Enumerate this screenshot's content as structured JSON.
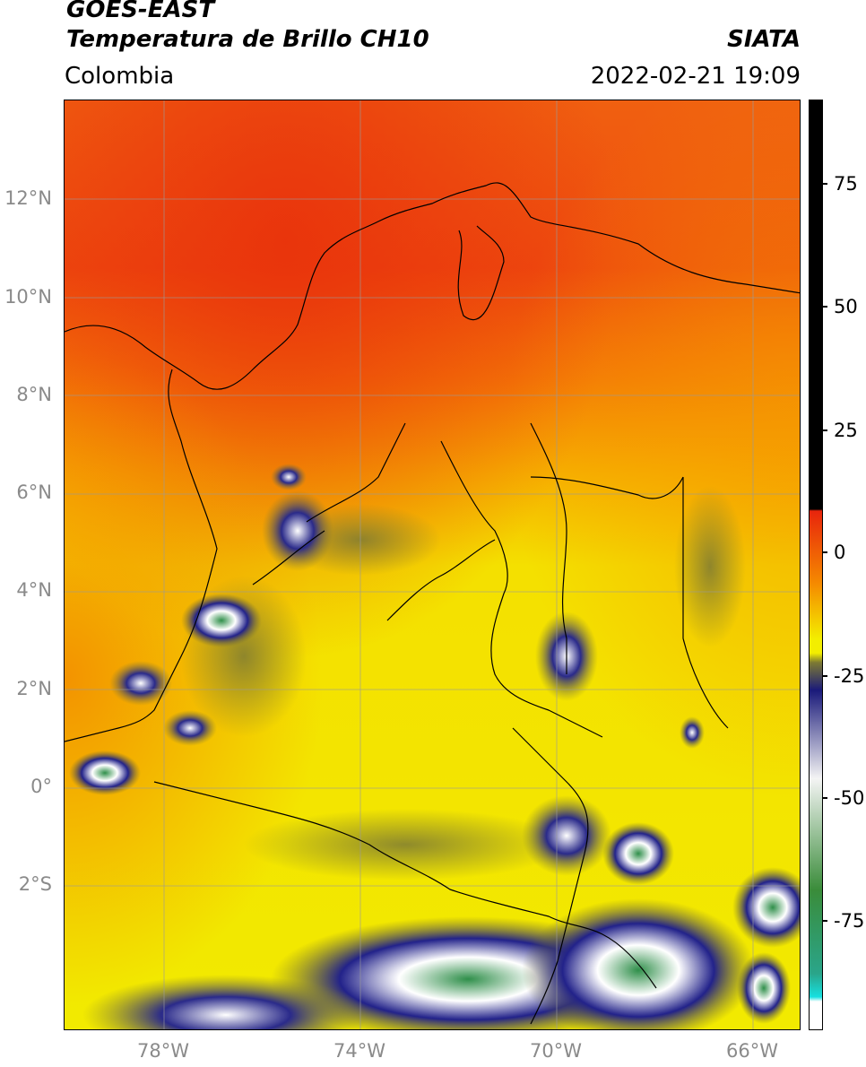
{
  "header": {
    "satellite": "GOES-EAST",
    "product": "Temperatura de Brillo CH10",
    "region": "Colombia",
    "source": "SIATA",
    "datetime": "2022-02-21 19:09"
  },
  "map": {
    "lat_ticks": [
      "12°N",
      "10°N",
      "8°N",
      "6°N",
      "4°N",
      "2°N",
      "0°",
      "2°S"
    ],
    "lon_ticks": [
      "78°W",
      "74°W",
      "70°W",
      "66°W"
    ],
    "gridlines": true
  },
  "colorbar": {
    "labels": [
      "75",
      "50",
      "25",
      "0",
      "-25",
      "-50",
      "-75"
    ],
    "colors": {
      "top": "#000000",
      "warm_red": "#e8250c",
      "orange": "#f58a00",
      "yellow": "#f3ee00",
      "olive": "#7d7a33",
      "navy": "#1a1a7a",
      "white": "#f4f4f4",
      "green": "#3a8c3a",
      "teal": "#2aa58a",
      "cyan": "#16e0e0"
    }
  }
}
